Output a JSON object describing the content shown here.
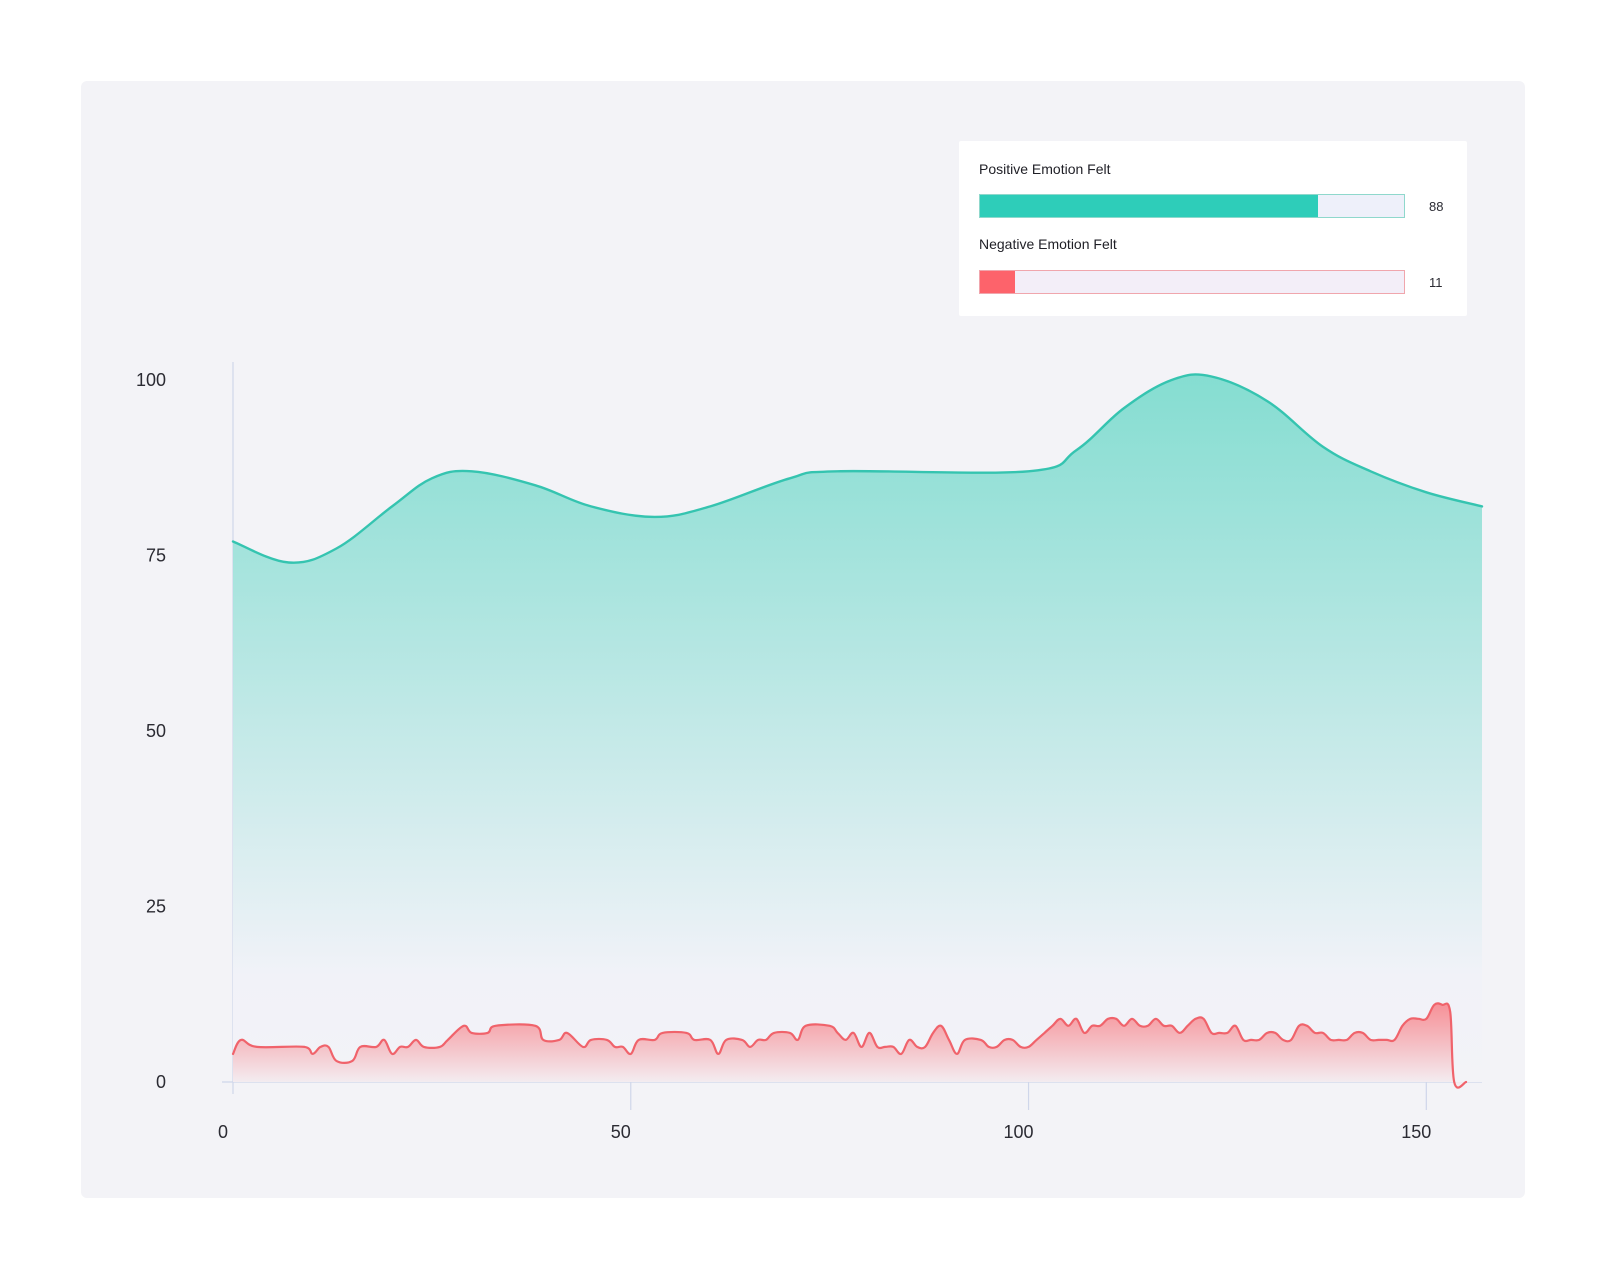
{
  "chart_data": {
    "type": "area",
    "title": "",
    "xlabel": "",
    "ylabel": "",
    "xlim": [
      0,
      157
    ],
    "ylim": [
      0,
      100
    ],
    "x_ticks": [
      0,
      50,
      100,
      150
    ],
    "y_ticks": [
      0,
      25,
      50,
      75,
      100
    ],
    "grid": false,
    "series": [
      {
        "name": "Positive Emotion Felt",
        "color": "#35c4b0",
        "points": [
          [
            0,
            77
          ],
          [
            7,
            74
          ],
          [
            13,
            76
          ],
          [
            20,
            82
          ],
          [
            25,
            86
          ],
          [
            30,
            87
          ],
          [
            38,
            85
          ],
          [
            45,
            82
          ],
          [
            53,
            80.5
          ],
          [
            60,
            82
          ],
          [
            70,
            86
          ],
          [
            76,
            87
          ],
          [
            100,
            87
          ],
          [
            106,
            90
          ],
          [
            112,
            96
          ],
          [
            118,
            100
          ],
          [
            123,
            100.5
          ],
          [
            130,
            97
          ],
          [
            137,
            90.5
          ],
          [
            143,
            87
          ],
          [
            150,
            84
          ],
          [
            157,
            82
          ]
        ]
      },
      {
        "name": "Negative Emotion Felt",
        "color": "#f0636b",
        "points": [
          [
            0,
            4
          ],
          [
            1,
            6
          ],
          [
            3,
            5
          ],
          [
            9,
            5
          ],
          [
            10,
            4
          ],
          [
            11,
            5
          ],
          [
            12,
            5
          ],
          [
            13,
            3
          ],
          [
            15,
            3
          ],
          [
            16,
            5
          ],
          [
            18,
            5
          ],
          [
            19,
            6
          ],
          [
            20,
            4
          ],
          [
            21,
            5
          ],
          [
            22,
            5
          ],
          [
            23,
            6
          ],
          [
            24,
            5
          ],
          [
            26,
            5
          ],
          [
            27,
            6
          ],
          [
            29,
            8
          ],
          [
            30,
            7
          ],
          [
            32,
            7
          ],
          [
            33,
            8
          ],
          [
            38,
            8
          ],
          [
            39,
            6
          ],
          [
            41,
            6
          ],
          [
            42,
            7
          ],
          [
            44,
            5
          ],
          [
            45,
            6
          ],
          [
            47,
            6
          ],
          [
            48,
            5
          ],
          [
            49,
            5
          ],
          [
            50,
            4
          ],
          [
            51,
            6
          ],
          [
            53,
            6
          ],
          [
            54,
            7
          ],
          [
            57,
            7
          ],
          [
            58,
            6
          ],
          [
            60,
            6
          ],
          [
            61,
            4
          ],
          [
            62,
            6
          ],
          [
            64,
            6
          ],
          [
            65,
            5
          ],
          [
            66,
            6
          ],
          [
            67,
            6
          ],
          [
            68,
            7
          ],
          [
            70,
            7
          ],
          [
            71,
            6
          ],
          [
            72,
            8
          ],
          [
            75,
            8
          ],
          [
            76,
            7
          ],
          [
            77,
            6
          ],
          [
            78,
            7
          ],
          [
            79,
            5
          ],
          [
            80,
            7
          ],
          [
            81,
            5
          ],
          [
            82,
            5
          ],
          [
            83,
            5
          ],
          [
            84,
            4
          ],
          [
            85,
            6
          ],
          [
            86,
            5
          ],
          [
            87,
            5
          ],
          [
            88,
            7
          ],
          [
            89,
            8
          ],
          [
            90,
            6
          ],
          [
            91,
            4
          ],
          [
            92,
            6
          ],
          [
            94,
            6
          ],
          [
            95,
            5
          ],
          [
            96,
            5
          ],
          [
            97,
            6
          ],
          [
            98,
            6
          ],
          [
            99,
            5
          ],
          [
            100,
            5
          ],
          [
            101,
            6
          ],
          [
            102,
            7
          ],
          [
            103,
            8
          ],
          [
            104,
            9
          ],
          [
            105,
            8
          ],
          [
            106,
            9
          ],
          [
            107,
            7
          ],
          [
            108,
            8
          ],
          [
            109,
            8
          ],
          [
            110,
            9
          ],
          [
            111,
            9
          ],
          [
            112,
            8
          ],
          [
            113,
            9
          ],
          [
            114,
            8
          ],
          [
            115,
            8
          ],
          [
            116,
            9
          ],
          [
            117,
            8
          ],
          [
            118,
            8
          ],
          [
            119,
            7
          ],
          [
            120,
            8
          ],
          [
            121,
            9
          ],
          [
            122,
            9
          ],
          [
            123,
            7
          ],
          [
            124,
            7
          ],
          [
            125,
            7
          ],
          [
            126,
            8
          ],
          [
            127,
            6
          ],
          [
            128,
            6
          ],
          [
            129,
            6
          ],
          [
            130,
            7
          ],
          [
            131,
            7
          ],
          [
            132,
            6
          ],
          [
            133,
            6
          ],
          [
            134,
            8
          ],
          [
            135,
            8
          ],
          [
            136,
            7
          ],
          [
            137,
            7
          ],
          [
            138,
            6
          ],
          [
            139,
            6
          ],
          [
            140,
            6
          ],
          [
            141,
            7
          ],
          [
            142,
            7
          ],
          [
            143,
            6
          ],
          [
            144,
            6
          ],
          [
            145,
            6
          ],
          [
            146,
            6
          ],
          [
            147,
            8
          ],
          [
            148,
            9
          ],
          [
            149,
            9
          ],
          [
            150,
            9
          ],
          [
            151,
            11
          ],
          [
            152,
            11
          ],
          [
            153,
            10
          ],
          [
            153.5,
            0
          ],
          [
            155,
            0
          ]
        ]
      }
    ],
    "legend": {
      "placement": "top-right",
      "items": [
        {
          "label": "Positive Emotion Felt",
          "value": 88,
          "max": 100,
          "value_text": "88",
          "color": "#2ecdb9"
        },
        {
          "label": "Negative Emotion Felt",
          "value": 11,
          "max": 100,
          "value_text": "11",
          "color": "#fd636b"
        }
      ]
    }
  }
}
